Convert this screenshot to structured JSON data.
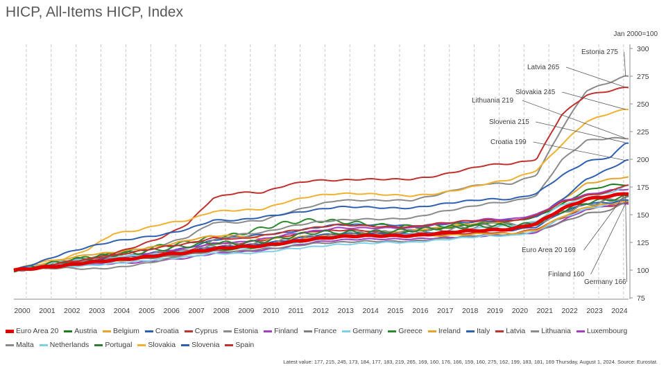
{
  "title": "HICP, All-Items HICP, Index",
  "unit_note": "Jan 2000=100",
  "footnote": "Latest value: 177, 215, 245, 173, 184, 177, 183, 219, 265, 169, 160, 176, 166, 159, 160, 275, 162, 199, 183, 181, 169 Thursday, August 1, 2024. Source: Eurostat.",
  "legend_order": [
    "Euro Area 20",
    "Austria",
    "Belgium",
    "Croatia",
    "Cyprus",
    "Estonia",
    "Finland",
    "France",
    "Germany",
    "Greece",
    "Ireland",
    "Italy",
    "Latvia",
    "Lithuania",
    "Luxembourg",
    "Malta",
    "Netherlands",
    "Portugal",
    "Slovakia",
    "Slovenia",
    "Spain"
  ],
  "chart_data": {
    "type": "line",
    "title": "HICP, All-Items HICP, Index",
    "xlabel": "",
    "ylabel": "",
    "ylim": [
      75,
      300
    ],
    "xlim": [
      2000.0,
      2024.7
    ],
    "yticks": [
      75,
      100,
      125,
      150,
      175,
      200,
      225,
      250,
      275,
      300
    ],
    "xticks": [
      "2000",
      "2001",
      "2002",
      "2003",
      "2004",
      "2005",
      "2006",
      "2007",
      "2008",
      "2009",
      "2010",
      "2011",
      "2012",
      "2013",
      "2014",
      "2015",
      "2016",
      "2017",
      "2018",
      "2019",
      "2020",
      "2021",
      "2022",
      "2023",
      "2024"
    ],
    "grid": "vertical dashed",
    "legend": "bottom",
    "x": [
      2000,
      2001,
      2002,
      2003,
      2004,
      2005,
      2006,
      2007,
      2008,
      2009,
      2010,
      2011,
      2012,
      2013,
      2014,
      2015,
      2016,
      2017,
      2018,
      2019,
      2020,
      2021,
      2022,
      2023,
      2024,
      2024.58
    ],
    "series": [
      {
        "name": "Euro Area 20",
        "color": "#e00000",
        "width": 5,
        "values": [
          100,
          102,
          104,
          107,
          109,
          111,
          114,
          116,
          119,
          121,
          122,
          125,
          128,
          130,
          131,
          131,
          131,
          133,
          135,
          136,
          137,
          142,
          155,
          164,
          167,
          169
        ]
      },
      {
        "name": "Austria",
        "color": "#1e7b1e",
        "width": 2,
        "values": [
          100,
          102,
          104,
          106,
          108,
          110,
          112,
          114,
          118,
          119,
          121,
          124,
          127,
          130,
          132,
          134,
          135,
          137,
          140,
          142,
          144,
          148,
          159,
          172,
          177,
          177
        ]
      },
      {
        "name": "Belgium",
        "color": "#e6a428",
        "width": 2,
        "values": [
          100,
          102,
          104,
          106,
          108,
          110,
          113,
          115,
          120,
          120,
          122,
          126,
          130,
          132,
          133,
          134,
          136,
          138,
          141,
          143,
          144,
          149,
          163,
          178,
          182,
          184
        ]
      },
      {
        "name": "Croatia",
        "color": "#2e5fb0",
        "width": 2,
        "values": [
          100,
          103,
          106,
          108,
          111,
          114,
          117,
          120,
          127,
          130,
          132,
          134,
          138,
          141,
          141,
          141,
          140,
          141,
          143,
          144,
          145,
          148,
          163,
          182,
          192,
          199
        ]
      },
      {
        "name": "Cyprus",
        "color": "#c0302e",
        "width": 2,
        "values": [
          100,
          102,
          105,
          109,
          111,
          113,
          116,
          118,
          124,
          124,
          127,
          131,
          135,
          136,
          136,
          133,
          132,
          132,
          133,
          134,
          133,
          137,
          147,
          155,
          158,
          160
        ]
      },
      {
        "name": "Estonia",
        "color": "#8a8a8a",
        "width": 2,
        "values": [
          100,
          105,
          108,
          111,
          114,
          118,
          123,
          130,
          143,
          143,
          145,
          152,
          158,
          163,
          163,
          163,
          163,
          168,
          174,
          178,
          178,
          186,
          227,
          262,
          270,
          275
        ]
      },
      {
        "name": "Finland",
        "color": "#a040c0",
        "width": 2,
        "values": [
          100,
          102,
          104,
          105,
          106,
          107,
          109,
          111,
          115,
          116,
          118,
          121,
          125,
          127,
          128,
          128,
          128,
          129,
          130,
          131,
          132,
          134,
          144,
          155,
          159,
          160
        ]
      },
      {
        "name": "France",
        "color": "#7f7f7f",
        "width": 2,
        "values": [
          100,
          102,
          104,
          106,
          108,
          110,
          112,
          114,
          117,
          117,
          119,
          121,
          124,
          125,
          126,
          126,
          126,
          128,
          130,
          132,
          132,
          135,
          143,
          151,
          154,
          162
        ]
      },
      {
        "name": "Germany",
        "color": "#7fd0e6",
        "width": 2,
        "values": [
          100,
          102,
          103,
          104,
          106,
          108,
          110,
          112,
          115,
          115,
          116,
          119,
          121,
          123,
          124,
          125,
          125,
          127,
          129,
          131,
          131,
          135,
          147,
          155,
          160,
          166
        ]
      },
      {
        "name": "Greece",
        "color": "#2e8a2e",
        "width": 2,
        "values": [
          100,
          104,
          108,
          111,
          114,
          118,
          122,
          125,
          130,
          132,
          138,
          143,
          145,
          144,
          142,
          140,
          139,
          140,
          141,
          141,
          140,
          142,
          153,
          159,
          163,
          166
        ]
      },
      {
        "name": "Ireland",
        "color": "#e6a428",
        "width": 2,
        "values": [
          100,
          105,
          110,
          114,
          116,
          119,
          122,
          127,
          131,
          131,
          128,
          129,
          131,
          132,
          133,
          132,
          131,
          131,
          132,
          133,
          133,
          136,
          148,
          157,
          160,
          162
        ]
      },
      {
        "name": "Italy",
        "color": "#2e5fb0",
        "width": 2,
        "values": [
          100,
          102,
          105,
          108,
          111,
          113,
          115,
          117,
          121,
          122,
          124,
          127,
          131,
          133,
          133,
          133,
          133,
          134,
          135,
          136,
          136,
          139,
          152,
          160,
          161,
          163
        ]
      },
      {
        "name": "Latvia",
        "color": "#c0302e",
        "width": 2,
        "values": [
          100,
          103,
          105,
          109,
          115,
          122,
          130,
          142,
          165,
          170,
          170,
          177,
          181,
          181,
          182,
          182,
          182,
          185,
          190,
          195,
          196,
          200,
          240,
          258,
          262,
          265
        ]
      },
      {
        "name": "Lithuania",
        "color": "#8a8a8a",
        "width": 2,
        "values": [
          100,
          101,
          102,
          101,
          102,
          105,
          109,
          115,
          127,
          132,
          134,
          139,
          143,
          145,
          146,
          146,
          147,
          152,
          156,
          160,
          162,
          167,
          199,
          217,
          219,
          219
        ]
      },
      {
        "name": "Luxembourg",
        "color": "#a040c0",
        "width": 2,
        "values": [
          100,
          102,
          104,
          107,
          110,
          114,
          117,
          120,
          124,
          125,
          128,
          132,
          135,
          138,
          138,
          138,
          138,
          141,
          144,
          146,
          146,
          150,
          162,
          168,
          172,
          173
        ]
      },
      {
        "name": "Malta",
        "color": "#8a8a8a",
        "width": 2,
        "values": [
          100,
          102,
          105,
          107,
          110,
          113,
          116,
          117,
          121,
          123,
          124,
          127,
          130,
          132,
          133,
          134,
          135,
          136,
          138,
          140,
          141,
          142,
          152,
          159,
          163,
          166
        ]
      },
      {
        "name": "Netherlands",
        "color": "#7fd0e6",
        "width": 2,
        "values": [
          100,
          104,
          108,
          110,
          112,
          113,
          115,
          117,
          119,
          120,
          121,
          124,
          127,
          131,
          131,
          131,
          132,
          133,
          135,
          139,
          140,
          144,
          159,
          165,
          170,
          176
        ]
      },
      {
        "name": "Portugal",
        "color": "#2e7d32",
        "width": 2,
        "values": [
          100,
          104,
          108,
          111,
          114,
          116,
          119,
          122,
          125,
          124,
          126,
          130,
          134,
          134,
          134,
          135,
          136,
          138,
          139,
          140,
          140,
          142,
          153,
          161,
          164,
          166
        ]
      },
      {
        "name": "Slovakia",
        "color": "#f0b030",
        "width": 2,
        "values": [
          100,
          107,
          110,
          119,
          133,
          136,
          142,
          145,
          153,
          154,
          155,
          162,
          167,
          169,
          169,
          168,
          167,
          169,
          173,
          178,
          182,
          190,
          213,
          234,
          242,
          245
        ]
      },
      {
        "name": "Slovenia",
        "color": "#2e5fb0",
        "width": 2,
        "values": [
          100,
          107,
          115,
          121,
          126,
          129,
          132,
          137,
          145,
          145,
          148,
          151,
          154,
          157,
          157,
          156,
          156,
          159,
          162,
          164,
          164,
          169,
          185,
          198,
          202,
          215
        ]
      },
      {
        "name": "Spain",
        "color": "#c0302e",
        "width": 2,
        "values": [
          100,
          103,
          107,
          110,
          113,
          117,
          121,
          124,
          129,
          128,
          131,
          135,
          138,
          141,
          140,
          139,
          139,
          142,
          144,
          145,
          144,
          149,
          161,
          167,
          171,
          177
        ]
      }
    ],
    "annotations": [
      {
        "label": "Estonia 275",
        "series": "Estonia"
      },
      {
        "label": "Latvia 265",
        "series": "Latvia"
      },
      {
        "label": "Slovakia 245",
        "series": "Slovakia"
      },
      {
        "label": "Lithuania 219",
        "series": "Lithuania"
      },
      {
        "label": "Slovenia 215",
        "series": "Slovenia"
      },
      {
        "label": "Croatia 199",
        "series": "Croatia"
      },
      {
        "label": "Euro Area 20 169",
        "series": "Euro Area 20"
      },
      {
        "label": "Finland 160",
        "series": "Finland"
      },
      {
        "label": "Germany 166",
        "series": "Germany"
      }
    ]
  }
}
